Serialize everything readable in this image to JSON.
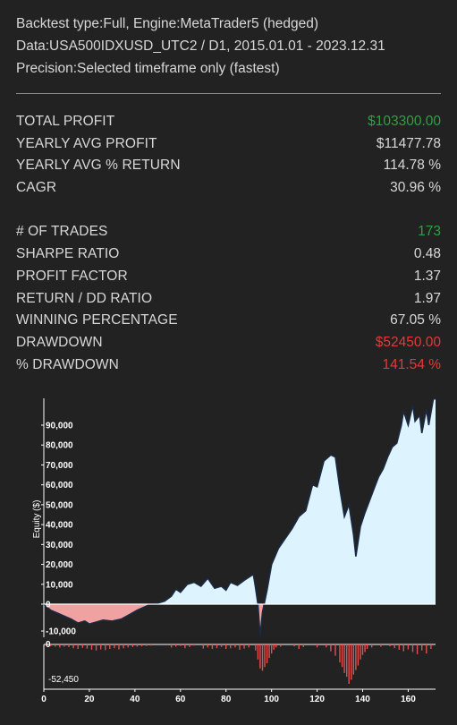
{
  "header": {
    "line1": "Backtest type:Full, Engine:MetaTrader5 (hedged)",
    "line2": "Data:USA500IDXUSD_UTC2 / D1, 2015.01.01 - 2023.12.31",
    "line3": "Precision:Selected timeframe only (fastest)"
  },
  "stats_group1": [
    {
      "label": "TOTAL PROFIT",
      "value": "$103300.00",
      "color": "#2ea043"
    },
    {
      "label": "YEARLY AVG PROFIT",
      "value": "$11477.78",
      "color": "#d8d8d8"
    },
    {
      "label": "YEARLY AVG % RETURN",
      "value": "114.78 %",
      "color": "#d8d8d8"
    },
    {
      "label": "CAGR",
      "value": "30.96 %",
      "color": "#d8d8d8"
    }
  ],
  "stats_group2": [
    {
      "label": "# OF TRADES",
      "value": "173",
      "color": "#2ea043"
    },
    {
      "label": "SHARPE RATIO",
      "value": "0.48",
      "color": "#d8d8d8"
    },
    {
      "label": "PROFIT FACTOR",
      "value": "1.37",
      "color": "#d8d8d8"
    },
    {
      "label": "RETURN / DD RATIO",
      "value": "1.97",
      "color": "#d8d8d8"
    },
    {
      "label": "WINNING PERCENTAGE",
      "value": "67.05 %",
      "color": "#d8d8d8"
    },
    {
      "label": "DRAWDOWN",
      "value": "$52450.00",
      "color": "#e5383b"
    },
    {
      "label": "% DRAWDOWN",
      "value": "141.54 %",
      "color": "#e5383b"
    }
  ],
  "chart_data": {
    "type": "area",
    "ylabel": "Equity ($)",
    "xlabel": "",
    "ylim": [
      -15000,
      102000
    ],
    "xlim": [
      0,
      172
    ],
    "y_ticks": [
      "90,000",
      "80,000",
      "70,000",
      "60,000",
      "50,000",
      "40,000",
      "30,000",
      "20,000",
      "10,000",
      "0",
      "-10,000"
    ],
    "x_ticks": [
      "0",
      "20",
      "40",
      "60",
      "80",
      "100",
      "120",
      "140",
      "160"
    ],
    "equity_x": [
      0,
      3,
      6,
      9,
      12,
      15,
      18,
      20,
      23,
      26,
      30,
      34,
      38,
      41,
      44,
      47,
      50,
      53,
      56,
      58,
      60,
      63,
      66,
      69,
      72,
      75,
      78,
      80,
      82,
      85,
      88,
      90,
      92,
      93,
      94,
      95,
      96,
      98,
      100,
      103,
      106,
      109,
      112,
      115,
      118,
      120,
      123,
      126,
      128,
      130,
      132,
      134,
      136,
      137,
      139,
      141,
      143,
      145,
      147,
      149,
      151,
      153,
      155,
      157,
      158,
      160,
      162,
      163,
      165,
      166,
      168,
      169,
      171,
      172
    ],
    "equity_y": [
      0,
      -3000,
      -4500,
      -6000,
      -7500,
      -9500,
      -8500,
      -10000,
      -9000,
      -8000,
      -8500,
      -7500,
      -5000,
      -3000,
      -1500,
      0,
      500,
      1500,
      4000,
      7500,
      6000,
      10000,
      11000,
      9000,
      13000,
      8000,
      9000,
      7000,
      11000,
      9500,
      12000,
      13500,
      15000,
      8000,
      0,
      -16000,
      -4000,
      7000,
      20000,
      28000,
      33000,
      38000,
      44000,
      47000,
      60000,
      59000,
      72000,
      75000,
      74000,
      58000,
      44000,
      50000,
      35000,
      24000,
      39000,
      46000,
      52000,
      58000,
      64000,
      68000,
      74000,
      79000,
      81000,
      90000,
      97000,
      90000,
      100000,
      92000,
      95000,
      86000,
      98000,
      90000,
      103000,
      103300
    ],
    "drawdown_min_label": "-52,450",
    "drawdown_zero_label": "0",
    "drawdown_x": [
      1,
      3,
      5,
      7,
      9,
      11,
      13,
      15,
      17,
      19,
      21,
      23,
      25,
      27,
      29,
      31,
      33,
      35,
      37,
      39,
      41,
      43,
      45,
      47,
      56,
      58,
      60,
      62,
      64,
      66,
      70,
      72,
      74,
      76,
      78,
      80,
      82,
      84,
      86,
      88,
      90,
      93,
      94,
      95,
      96,
      97,
      98,
      99,
      100,
      101,
      102,
      104,
      110,
      112,
      114,
      120,
      124,
      126,
      128,
      130,
      131,
      132,
      133,
      134,
      135,
      136,
      137,
      138,
      139,
      140,
      141,
      142,
      144,
      148,
      152,
      154,
      156,
      158,
      160,
      162,
      164,
      166,
      168,
      170
    ],
    "drawdown_y": [
      -1500,
      -2500,
      -3000,
      -4000,
      -3000,
      -3500,
      -5000,
      -6000,
      -4500,
      -5500,
      -7000,
      -8000,
      -6500,
      -7500,
      -6000,
      -5000,
      -6500,
      -5000,
      -4000,
      -3500,
      -3000,
      -2500,
      -2000,
      -1500,
      -4000,
      -3000,
      -2000,
      -5000,
      -3500,
      -1500,
      -5500,
      -4000,
      -6000,
      -5000,
      -3500,
      -6000,
      -5000,
      -4000,
      -7000,
      -5500,
      -4000,
      -8000,
      -20000,
      -32000,
      -35000,
      -30000,
      -25000,
      -18000,
      -12000,
      -7000,
      -4000,
      -3000,
      -2500,
      -6000,
      -3500,
      -4000,
      -4000,
      -9000,
      -15000,
      -24000,
      -30000,
      -38000,
      -43000,
      -52450,
      -47000,
      -40000,
      -34000,
      -28000,
      -20000,
      -14000,
      -10000,
      -6000,
      -4000,
      -3000,
      -2500,
      -5000,
      -7000,
      -9000,
      -6500,
      -10000,
      -13000,
      -8000,
      -12000,
      -6000
    ],
    "colors": {
      "equity_fill": "#ddf4ff",
      "equity_line": "#1a2a44",
      "negative_fill": "#f0a2a2",
      "drawdown_bar": "#e34f4f",
      "background": "#222222"
    }
  }
}
